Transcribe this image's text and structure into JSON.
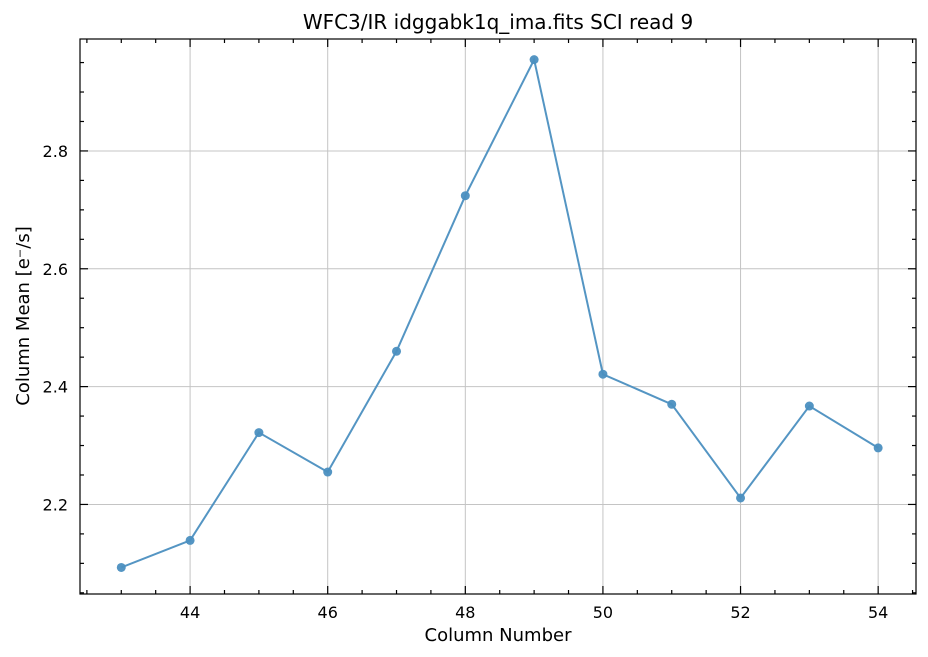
{
  "chart_data": {
    "type": "line",
    "title": "WFC3/IR idggabk1q_ima.fits SCI read 9",
    "xlabel": "Column Number",
    "ylabel": "Column Mean [e⁻/s]",
    "x": [
      43,
      44,
      45,
      46,
      47,
      48,
      49,
      50,
      51,
      52,
      53,
      54
    ],
    "series": [
      {
        "values": [
          2.093,
          2.139,
          2.322,
          2.255,
          2.46,
          2.724,
          2.955,
          2.421,
          2.37,
          2.211,
          2.367,
          2.296
        ],
        "color": "#4b8fc0"
      }
    ],
    "xlim": [
      42.4,
      54.55
    ],
    "ylim": [
      2.048,
      2.99
    ],
    "xticks": [
      44,
      46,
      48,
      50,
      52,
      54
    ],
    "xtick_labels": [
      "44",
      "46",
      "48",
      "50",
      "52",
      "54"
    ],
    "yticks": [
      2.2,
      2.4,
      2.6,
      2.8
    ],
    "ytick_labels": [
      "2.2",
      "2.4",
      "2.6",
      "2.8"
    ],
    "grid": true,
    "marker": "circle"
  }
}
